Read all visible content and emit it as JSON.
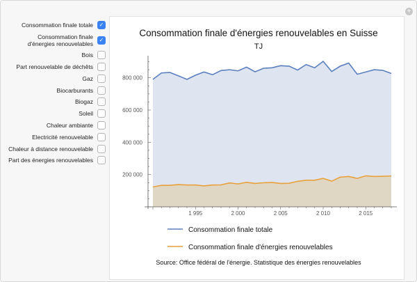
{
  "controls": [
    {
      "label": "Consommation finale totale",
      "checked": true
    },
    {
      "label": "Consommation finale d'énergies renouvelables",
      "checked": true
    },
    {
      "label": "Bois",
      "checked": false
    },
    {
      "label": "Part renouvelable de déchêts",
      "checked": false
    },
    {
      "label": "Gaz",
      "checked": false
    },
    {
      "label": "Biocarburants",
      "checked": false
    },
    {
      "label": "Biogaz",
      "checked": false
    },
    {
      "label": "Soleil",
      "checked": false
    },
    {
      "label": "Chaleur ambiante",
      "checked": false
    },
    {
      "label": "Electricité renouvelable",
      "checked": false
    },
    {
      "label": "Chaleur à distance renouvelable",
      "checked": false
    },
    {
      "label": "Part des énergies renouvelables",
      "checked": false
    }
  ],
  "plus_icon": "+",
  "chart_data": {
    "type": "area",
    "title": "Consommation finale d'énergies renouvelables en Suisse",
    "subtitle": "TJ",
    "source": "Source: Office fédéral de l'énergie. Statistique des énergies renouvelables",
    "x": [
      1990,
      1991,
      1992,
      1993,
      1994,
      1995,
      1996,
      1997,
      1998,
      1999,
      2000,
      2001,
      2002,
      2003,
      2004,
      2005,
      2006,
      2007,
      2008,
      2009,
      2010,
      2011,
      2012,
      2013,
      2014,
      2015,
      2016,
      2017,
      2018
    ],
    "xticks": [
      1995,
      2000,
      2005,
      2010,
      2015
    ],
    "xtick_labels": [
      "1 995",
      "2 000",
      "2 005",
      "2 010",
      "2 015"
    ],
    "yticks": [
      200000,
      400000,
      600000,
      800000
    ],
    "ytick_labels": [
      "200 000",
      "400 000",
      "600 000",
      "800 000"
    ],
    "ylim": [
      0,
      940000
    ],
    "series": [
      {
        "name": "Consommation finale totale",
        "color": "#5a7fbf",
        "fill": "#dfe5f0",
        "values": [
          790000,
          830000,
          833000,
          812000,
          790000,
          816000,
          836000,
          819000,
          845000,
          850000,
          843000,
          866000,
          837000,
          859000,
          862000,
          875000,
          872000,
          848000,
          882000,
          862000,
          902000,
          839000,
          872000,
          891000,
          822000,
          836000,
          850000,
          846000,
          827000
        ]
      },
      {
        "name": "Consommation finale d'énergies renouvelables",
        "color": "#e8a13a",
        "fill": "#e0d6c4",
        "values": [
          123000,
          133000,
          133000,
          138000,
          135000,
          135000,
          130000,
          135000,
          136000,
          148000,
          142000,
          152000,
          145000,
          149000,
          151000,
          145000,
          146000,
          158000,
          165000,
          165000,
          176000,
          159000,
          184000,
          188000,
          176000,
          192000,
          188000,
          189000,
          191000
        ]
      }
    ]
  }
}
